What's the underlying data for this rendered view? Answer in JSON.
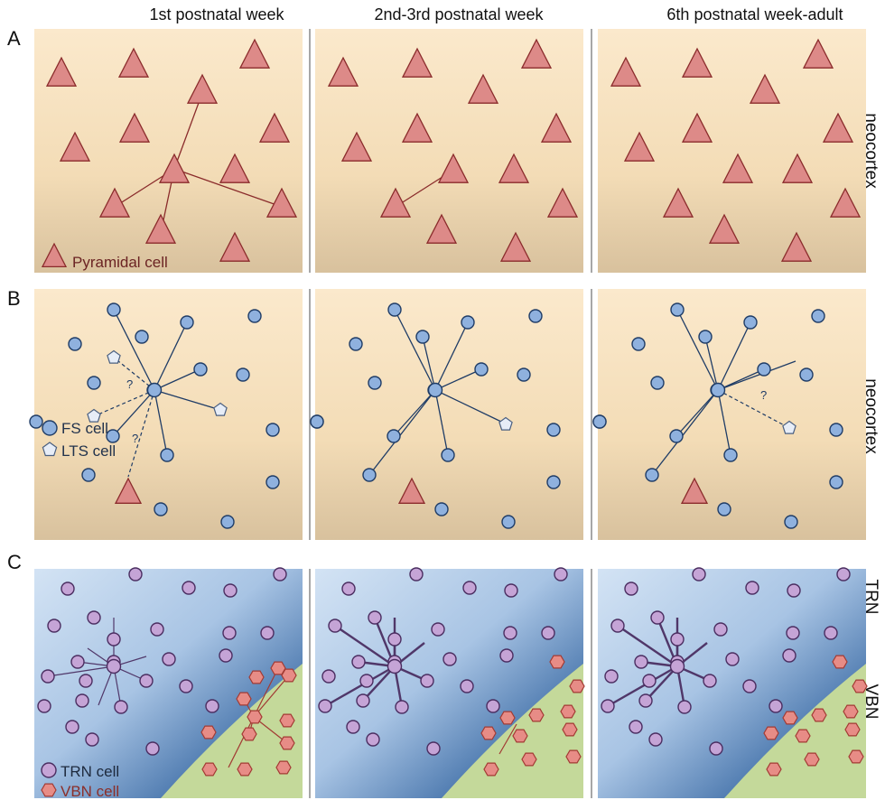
{
  "columns": [
    "1st postnatal week",
    "2nd-3rd postnatal week",
    "6th postnatal week-adult"
  ],
  "rows": [
    "A",
    "B",
    "C"
  ],
  "side_labels": {
    "a": "neocortex",
    "b": "neocortex",
    "c_top": "TRN",
    "c_bottom": "VBN"
  },
  "legend": {
    "pyramidal": "Pyramidal cell",
    "fs": "FS cell",
    "lts": "LTS cell",
    "trn": "TRN cell",
    "vbn": "VBN cell",
    "question": "?"
  },
  "colors": {
    "cortex_top": "#fbe9cc",
    "cortex_bottom": "#d9c29e",
    "pyramidal_fill": "#dd8a88",
    "pyramidal_stroke": "#8a2b2b",
    "fs_fill": "#8fb1de",
    "fs_stroke": "#1f3c66",
    "lts_fill": "#e7edf7",
    "thal_light": "#c9dcf1",
    "thal_dark": "#2c5b90",
    "vbn_bg": "#c4d99a",
    "trn_fill": "#c5a4d6",
    "trn_stroke": "#4a2d60",
    "vbn_fill": "#e78c86",
    "vbn_stroke": "#a23a33"
  }
}
